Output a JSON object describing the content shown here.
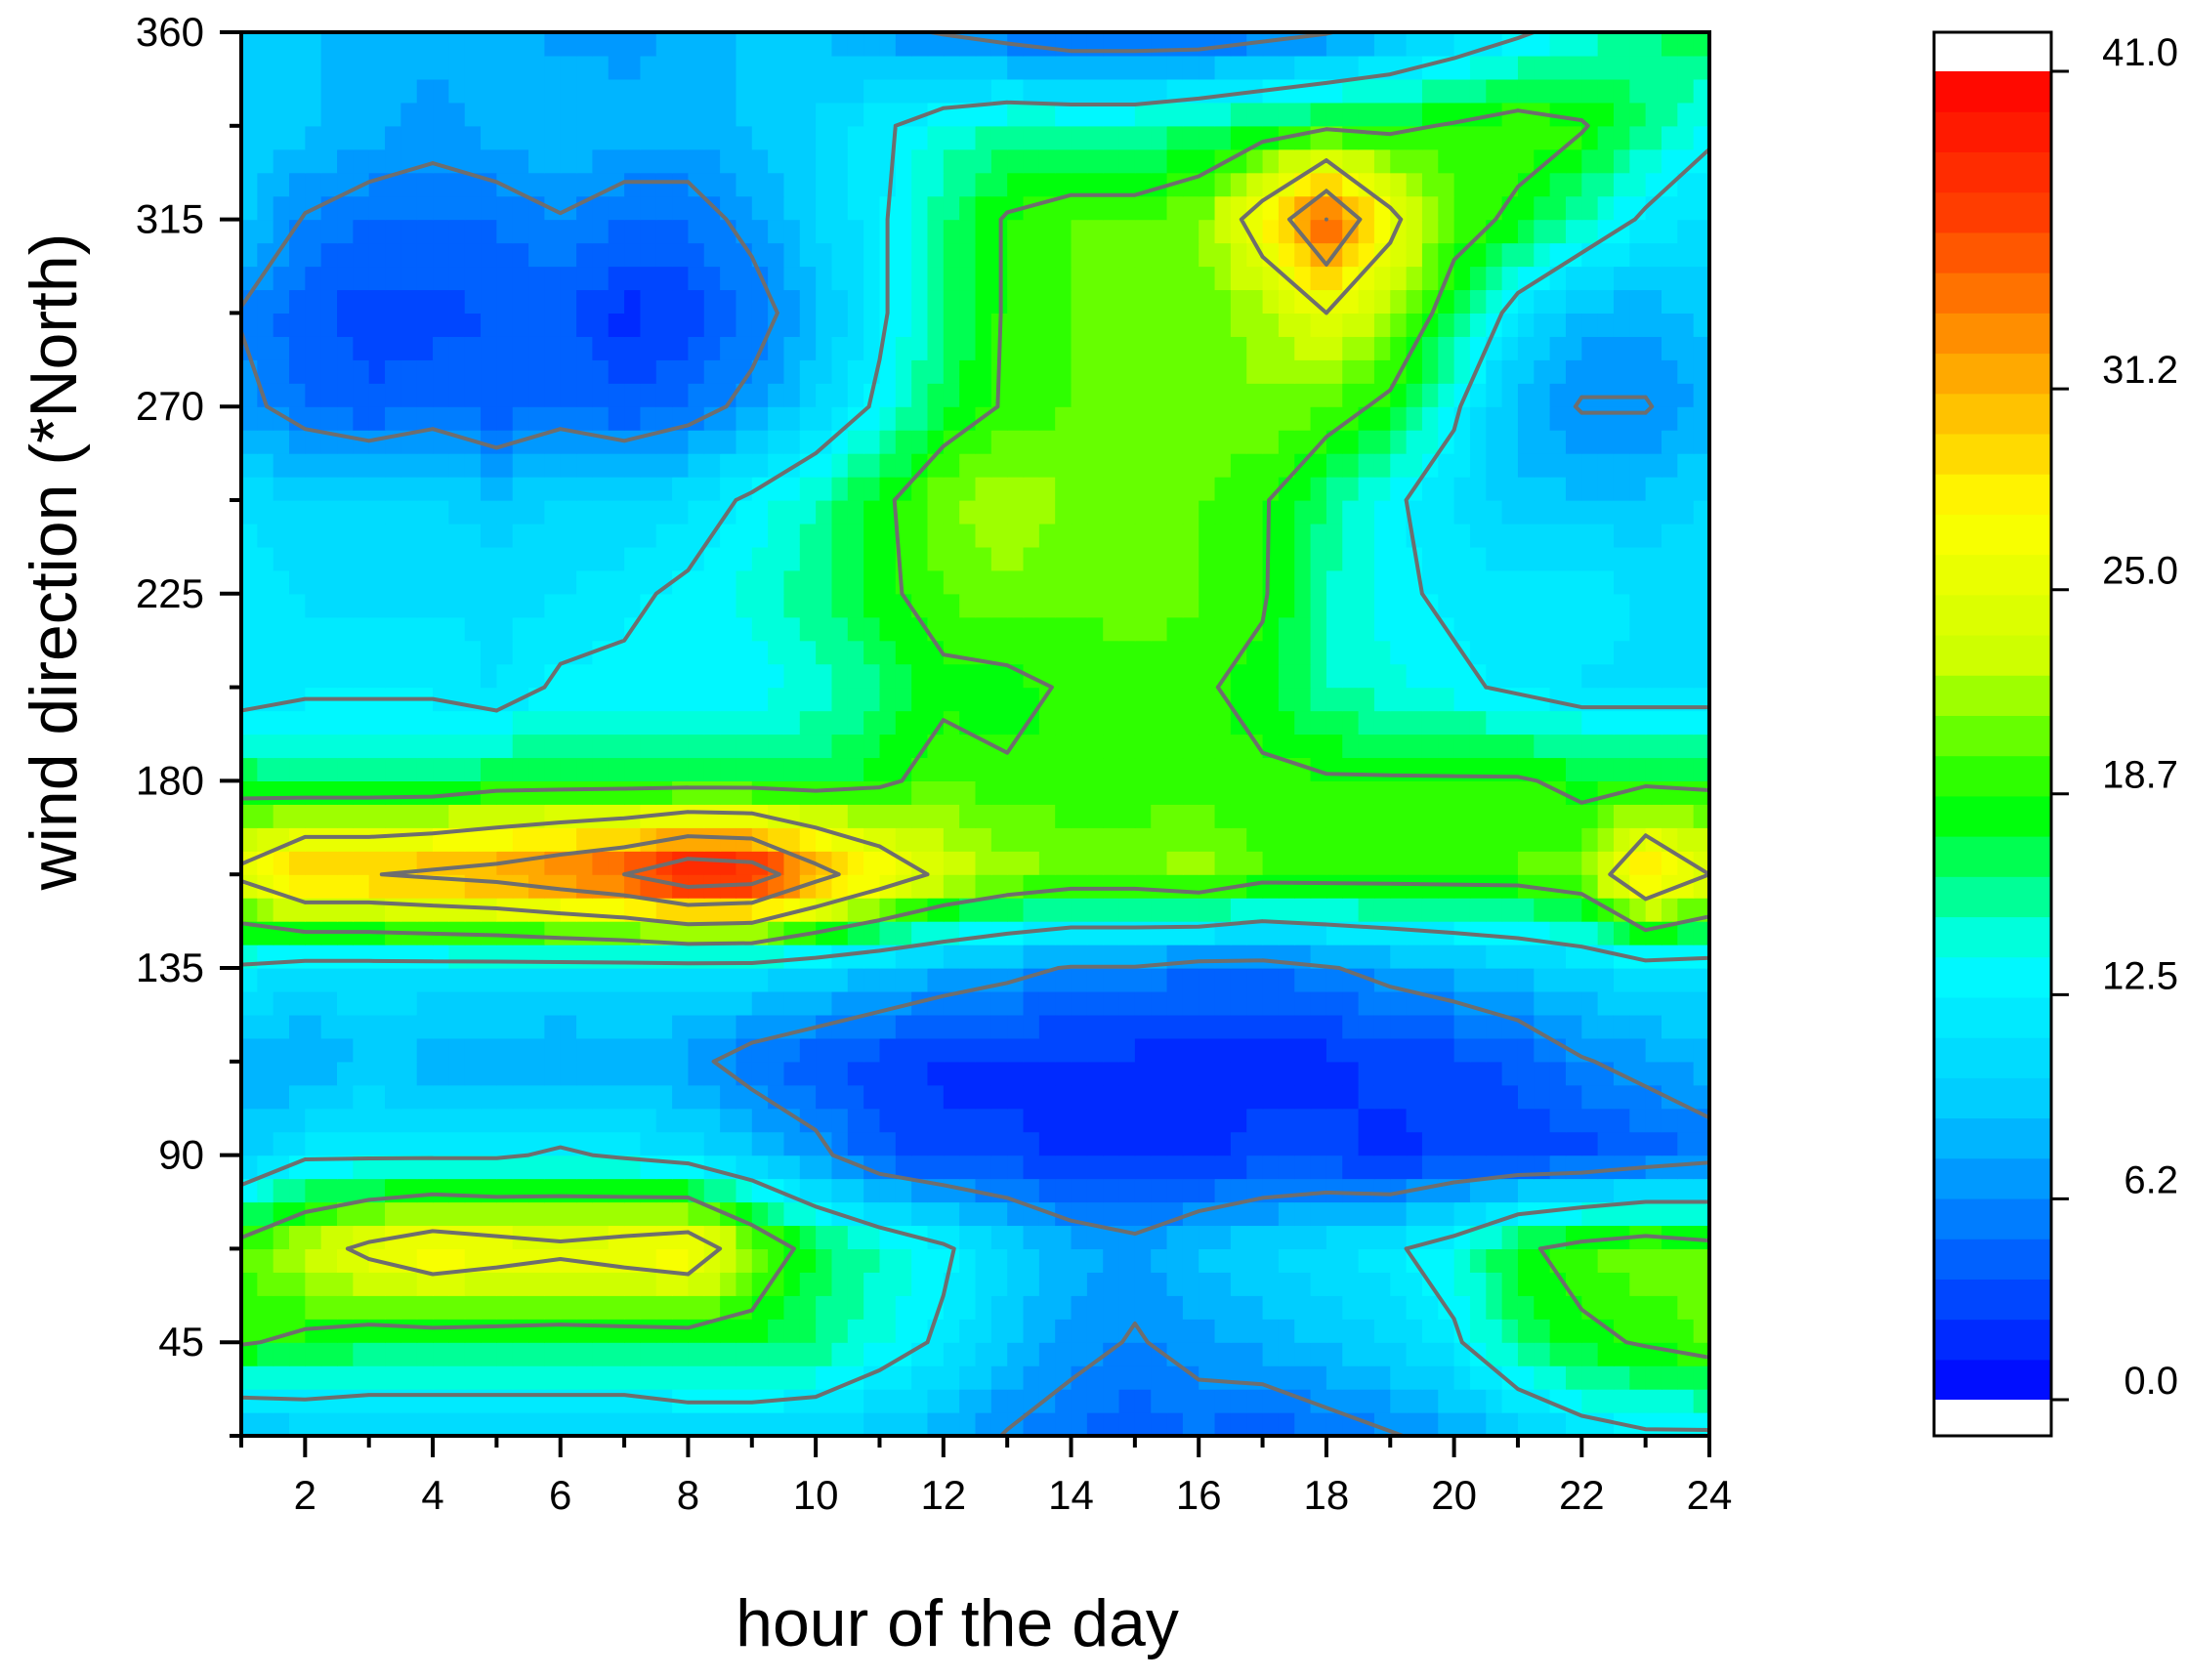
{
  "chart_data": {
    "type": "heatmap",
    "title": "",
    "xlabel": "hour of the day",
    "ylabel": "wind direction (*North)",
    "xlim": [
      1,
      24
    ],
    "ylim": [
      22.5,
      360
    ],
    "x_ticks": [
      2,
      4,
      6,
      8,
      10,
      12,
      14,
      16,
      18,
      20,
      22,
      24
    ],
    "x_tick_labels": [
      "2",
      "4",
      "6",
      "8",
      "10",
      "12",
      "14",
      "16",
      "18",
      "20",
      "22",
      "24"
    ],
    "y_ticks": [
      45,
      90,
      135,
      180,
      225,
      270,
      315,
      360
    ],
    "y_tick_labels": [
      "45",
      "90",
      "135",
      "180",
      "225",
      "270",
      "315",
      "360"
    ],
    "x": [
      1,
      2,
      3,
      4,
      5,
      6,
      7,
      8,
      9,
      10,
      11,
      12,
      13,
      14,
      15,
      16,
      17,
      18,
      19,
      20,
      21,
      22,
      23,
      24
    ],
    "y": [
      22.5,
      45,
      67.5,
      90,
      112.5,
      135,
      157.5,
      180,
      202.5,
      225,
      247.5,
      270,
      292.5,
      315,
      337.5,
      360
    ],
    "z": [
      [
        8,
        9,
        9,
        9,
        9,
        9,
        9,
        10,
        10,
        10,
        9,
        8,
        6,
        5,
        4,
        5,
        4,
        5,
        6,
        7,
        9,
        11,
        12,
        12
      ],
      [
        19,
        18,
        17,
        17,
        17,
        17,
        17,
        17,
        17,
        16,
        14,
        12,
        9,
        7,
        6,
        7,
        8,
        9,
        10,
        12,
        16,
        18,
        19,
        20
      ],
      [
        20,
        23,
        26,
        28,
        27,
        26,
        27,
        28,
        22,
        17,
        15,
        13,
        10,
        8,
        7,
        9,
        10,
        11,
        12,
        14,
        18,
        20,
        21,
        20
      ],
      [
        9,
        12,
        12,
        12,
        12,
        13,
        12,
        11,
        9,
        7,
        4,
        3,
        3,
        2,
        2,
        2,
        3,
        3,
        2,
        3,
        3,
        3,
        4,
        5
      ],
      [
        8,
        7,
        9,
        8,
        8,
        7,
        8,
        7,
        5,
        4,
        3,
        2,
        2,
        2,
        2,
        2,
        2,
        2,
        3,
        3,
        4,
        6,
        7,
        8
      ],
      [
        12,
        11,
        11,
        11,
        11,
        11,
        11,
        11,
        11,
        10,
        9,
        8,
        7,
        6,
        6,
        5,
        5,
        6,
        7,
        8,
        9,
        10,
        11,
        11
      ],
      [
        26,
        31,
        31,
        32,
        33,
        35,
        37,
        41,
        40,
        33,
        28,
        24,
        22,
        21,
        21,
        22,
        20,
        20,
        20,
        20,
        20,
        21,
        30,
        25
      ],
      [
        17,
        16,
        16,
        16,
        17,
        17,
        17,
        17,
        17,
        17,
        18,
        20,
        19,
        19,
        19,
        19,
        19,
        19,
        19,
        19,
        19,
        18,
        18,
        18
      ],
      [
        11,
        12,
        12,
        12,
        11,
        13,
        13,
        13,
        13,
        14,
        16,
        18,
        18,
        19,
        19,
        19,
        18,
        15,
        14,
        13,
        12,
        11,
        11,
        11
      ],
      [
        12,
        11,
        11,
        11,
        11,
        11,
        12,
        13,
        14,
        16,
        18,
        20,
        21,
        20,
        21,
        20,
        19,
        15,
        13,
        12,
        12,
        12,
        11,
        11
      ],
      [
        11,
        10,
        10,
        10,
        9,
        10,
        10,
        11,
        13,
        15,
        18,
        21,
        22,
        21,
        20,
        20,
        19,
        16,
        13,
        11,
        9,
        9,
        9,
        10
      ],
      [
        7,
        5,
        4,
        5,
        4,
        5,
        4,
        5,
        7,
        10,
        13,
        17,
        19,
        20,
        20,
        20,
        21,
        20,
        18,
        13,
        8,
        6,
        6,
        8
      ],
      [
        6,
        4,
        3,
        3,
        4,
        4,
        2,
        3,
        5,
        8,
        12,
        16,
        19,
        20,
        20,
        20,
        22,
        25,
        22,
        17,
        11,
        8,
        8,
        9
      ],
      [
        9,
        6,
        5,
        5,
        5,
        6,
        5,
        5,
        7,
        10,
        12,
        16,
        19,
        20,
        20,
        21,
        27,
        37,
        26,
        20,
        18,
        15,
        12,
        11
      ],
      [
        10,
        9,
        8,
        7,
        8,
        9,
        8,
        8,
        9,
        10,
        12,
        14,
        15,
        15,
        15,
        16,
        17,
        18,
        18,
        19,
        20,
        19,
        16,
        13
      ],
      [
        9,
        9,
        8,
        8,
        8,
        7,
        7,
        8,
        9,
        9,
        7,
        6,
        5,
        4,
        4,
        4,
        5,
        6,
        8,
        10,
        12,
        14,
        16,
        17
      ]
    ],
    "z_min": 0,
    "z_max": 41,
    "colorbar_labels": [
      "0.0",
      "6.2",
      "12.5",
      "18.7",
      "25.0",
      "31.2",
      "41.0"
    ],
    "colorbar_label_values": [
      0,
      6.2,
      12.5,
      18.7,
      25.0,
      31.2,
      41.0
    ],
    "contour_levels": [
      6.2,
      12.5,
      18.7,
      25.0,
      31.2,
      37.0
    ],
    "contour_color": "#6e6e6e",
    "colormap": [
      "#0000ff",
      "#0066ff",
      "#00ccff",
      "#00ffff",
      "#00ff00",
      "#ccff00",
      "#ffff00",
      "#ffa500",
      "#ff4000",
      "#ff0000"
    ],
    "grid": false,
    "legend": "colorbar right"
  }
}
